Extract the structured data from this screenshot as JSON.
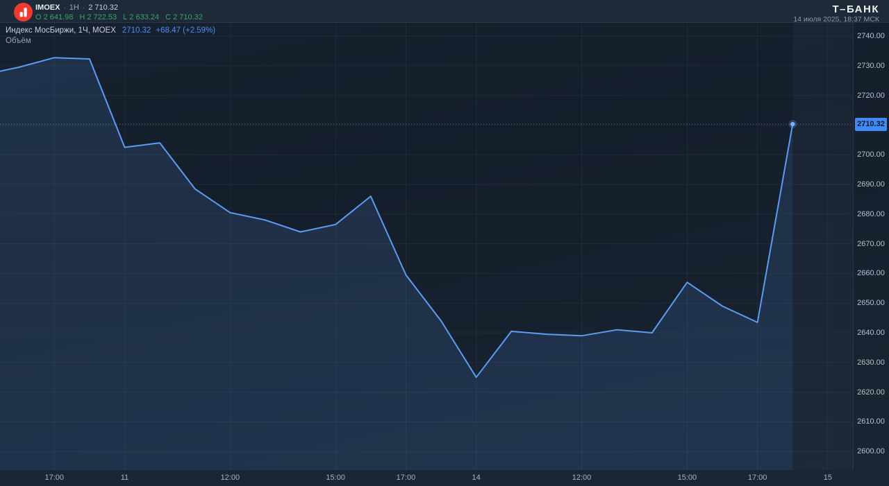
{
  "app": {
    "brand": "Т–БАНК",
    "datetime": "14 июля 2025, 18:37 МСК"
  },
  "symbol_header": {
    "symbol": "IMOEX",
    "sep": "·",
    "interval": "1H",
    "last": "2 710.32",
    "ohlc": [
      {
        "k": "O",
        "v": "2 641.98"
      },
      {
        "k": "H",
        "v": "2 722.53"
      },
      {
        "k": "L",
        "v": "2 633.24"
      },
      {
        "k": "C",
        "v": "2 710.32"
      }
    ]
  },
  "legend": {
    "title": "Индекс МосБиржи, 1Ч, MOEX",
    "value": "2710.32",
    "change": "+68.47 (+2.59%)",
    "indicator": "Объём"
  },
  "price_scale": {
    "labels": [
      "2740.00",
      "2730.00",
      "2720.00",
      "2700.00",
      "2690.00",
      "2680.00",
      "2670.00",
      "2660.00",
      "2650.00",
      "2640.00",
      "2630.00",
      "2620.00",
      "2610.00",
      "2600.00"
    ],
    "current_label": "2710.32"
  },
  "time_scale": {
    "ticks": [
      {
        "label": "17:00",
        "bar": 2
      },
      {
        "label": "11",
        "bar": 4
      },
      {
        "label": "12:00",
        "bar": 7
      },
      {
        "label": "15:00",
        "bar": 10
      },
      {
        "label": "17:00",
        "bar": 12
      },
      {
        "label": "14",
        "bar": 14
      },
      {
        "label": "12:00",
        "bar": 17
      },
      {
        "label": "15:00",
        "bar": 20
      },
      {
        "label": "17:00",
        "bar": 22
      },
      {
        "label": "15",
        "bar": 24
      }
    ]
  },
  "colors": {
    "line": "#5b9cf5",
    "fill": "rgba(91,156,245,0.14)",
    "up_green": "#32a66a",
    "value_blue": "#4a8ff0",
    "label_bg": "#4189f5",
    "label_text": "#0e1726",
    "grid": "rgba(151,178,211,0.07)",
    "axis_separator": "rgba(160,185,215,0.14)",
    "current_price_line": "rgba(150,165,182,0.55)",
    "logo_red": "#ef3a34"
  },
  "chart_data": {
    "type": "line",
    "title": "Индекс МосБиржи (IMOEX), 1Ч — цены закрытия часовых баров",
    "x_unit": "часовые бары, торговые часы 09:00–18:00 МСК",
    "ylim": [
      2600,
      2740
    ],
    "y_step": 10,
    "grid": true,
    "legend_position": "top-left",
    "last_value": 2710.32,
    "points": [
      {
        "t": "10.07 15:00",
        "v": 2727.0
      },
      {
        "t": "10.07 16:00",
        "v": 2729.5
      },
      {
        "t": "10.07 17:00",
        "v": 2732.7
      },
      {
        "t": "10.07 18:00",
        "v": 2732.3
      },
      {
        "t": "11.07 09:00",
        "v": 2702.5
      },
      {
        "t": "11.07 10:00",
        "v": 2704.0
      },
      {
        "t": "11.07 11:00",
        "v": 2688.5
      },
      {
        "t": "11.07 12:00",
        "v": 2680.5
      },
      {
        "t": "11.07 13:00",
        "v": 2678.0
      },
      {
        "t": "11.07 14:00",
        "v": 2674.0
      },
      {
        "t": "11.07 15:00",
        "v": 2676.5
      },
      {
        "t": "11.07 16:00",
        "v": 2686.0
      },
      {
        "t": "11.07 17:00",
        "v": 2659.5
      },
      {
        "t": "11.07 18:00",
        "v": 2644.0
      },
      {
        "t": "14.07 09:00",
        "v": 2625.0
      },
      {
        "t": "14.07 10:00",
        "v": 2640.5
      },
      {
        "t": "14.07 11:00",
        "v": 2639.5
      },
      {
        "t": "14.07 12:00",
        "v": 2639.0
      },
      {
        "t": "14.07 13:00",
        "v": 2641.0
      },
      {
        "t": "14.07 14:00",
        "v": 2640.0
      },
      {
        "t": "14.07 15:00",
        "v": 2657.0
      },
      {
        "t": "14.07 16:00",
        "v": 2649.0
      },
      {
        "t": "14.07 17:00",
        "v": 2643.5
      },
      {
        "t": "14.07 18:00",
        "v": 2710.32
      }
    ]
  }
}
